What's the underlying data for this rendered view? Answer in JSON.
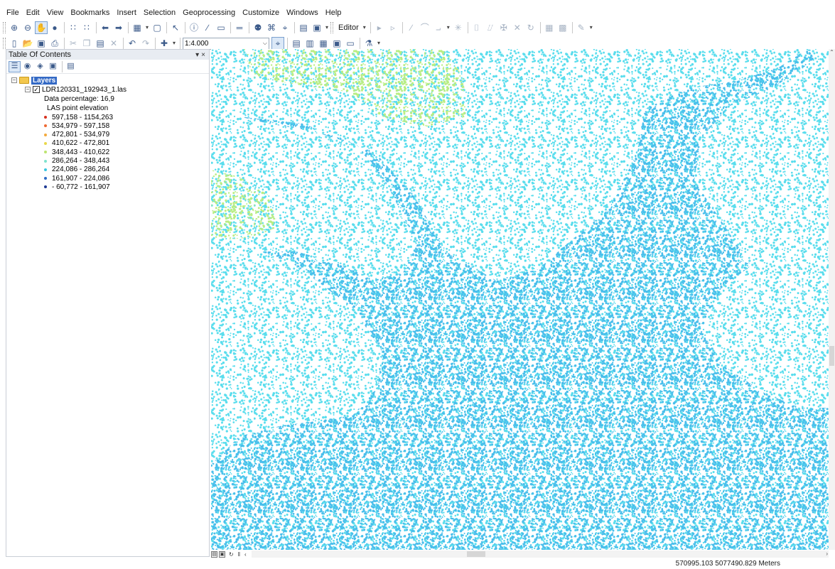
{
  "menu": [
    "File",
    "Edit",
    "View",
    "Bookmarks",
    "Insert",
    "Selection",
    "Geoprocessing",
    "Customize",
    "Windows",
    "Help"
  ],
  "toolbar": {
    "editor_label": "Editor",
    "scale_value": "1:4.000"
  },
  "toc": {
    "title": "Table Of Contents",
    "pin_glyph": "▾",
    "close_glyph": "×",
    "root_label": "Layers",
    "layer_name": "LDR120331_192943_1.las",
    "data_percentage": "Data percentage: 16,9",
    "renderer_title": "LAS point elevation",
    "legend": [
      {
        "label": "597,158 - 1154,263",
        "color": "#d7301f"
      },
      {
        "label": "534,979 - 597,158",
        "color": "#ef6a33"
      },
      {
        "label": "472,801 - 534,979",
        "color": "#f3a93c"
      },
      {
        "label": "410,622 - 472,801",
        "color": "#e9d749"
      },
      {
        "label": "348,443 - 410,622",
        "color": "#bce56f"
      },
      {
        "label": "286,264 - 348,443",
        "color": "#7fe3cf"
      },
      {
        "label": "224,086 - 286,264",
        "color": "#39c6e0"
      },
      {
        "label": "161,907 - 224,086",
        "color": "#2e6cc6"
      },
      {
        "label": "- 60,772 - 161,907",
        "color": "#1f3b94"
      }
    ]
  },
  "map": {
    "colors": {
      "low": "#3ab9ea",
      "mid": "#4cdbec",
      "high": "#b3ec7a"
    }
  },
  "status": {
    "coordinates": "570995.103  5077490.829 Meters"
  }
}
